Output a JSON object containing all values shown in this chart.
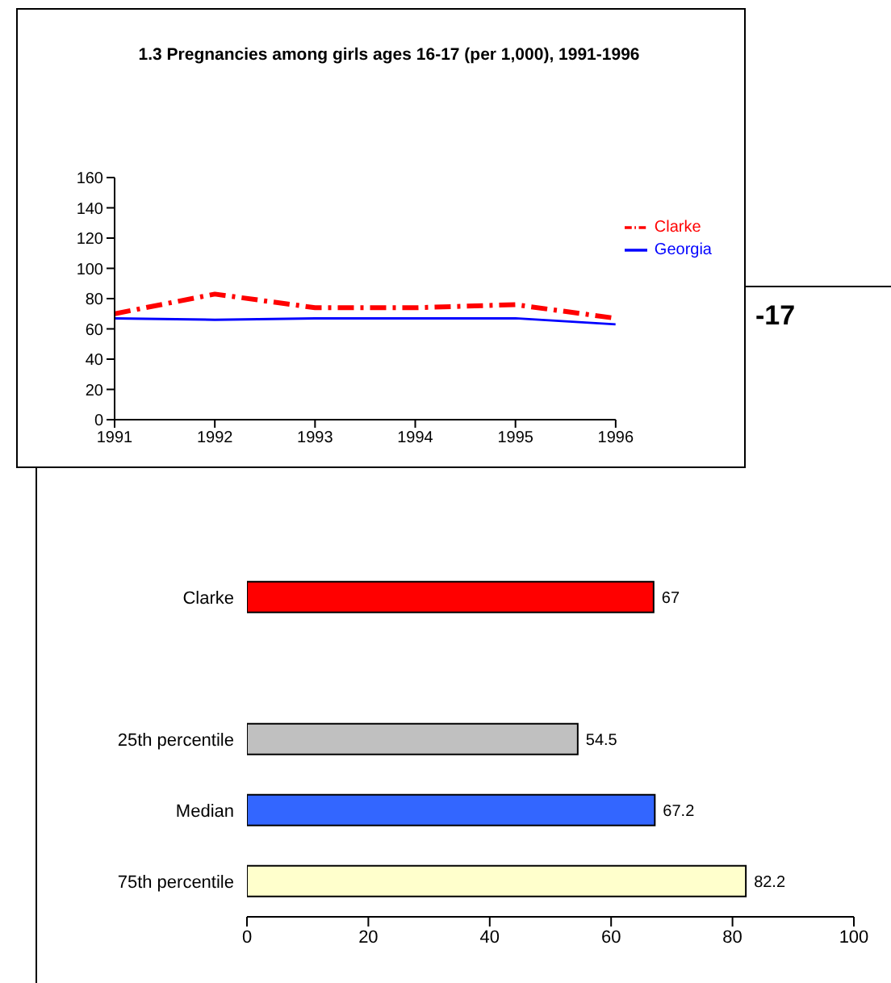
{
  "chart_data": [
    {
      "type": "line",
      "title": "1.3  Pregnancies among girls ages 16-17 (per 1,000), 1991-1996",
      "x": [
        1991,
        1992,
        1993,
        1994,
        1995,
        1996
      ],
      "xlim": [
        1991,
        1996
      ],
      "xticks": [
        1991,
        1992,
        1993,
        1994,
        1995,
        1996
      ],
      "ylim": [
        0,
        160
      ],
      "yticks": [
        0,
        20,
        40,
        60,
        80,
        100,
        120,
        140,
        160
      ],
      "grid": false,
      "legend": "right",
      "marker": "none",
      "series": [
        {
          "name": "Georgia",
          "color": "#0000ff",
          "line_style": "solid",
          "values": [
            67,
            66,
            67,
            67,
            67,
            63
          ]
        },
        {
          "name": "Clarke",
          "color": "#ff0000",
          "line_style": "dashed",
          "values": [
            70,
            83,
            74,
            74,
            76,
            67
          ]
        }
      ]
    },
    {
      "type": "bar",
      "orientation": "horizontal",
      "title": "-17",
      "categories": [
        "Clarke",
        null,
        "25th percentile",
        "Median",
        "75th percentile"
      ],
      "values": [
        67,
        null,
        54.5,
        67.2,
        82.2
      ],
      "colors": [
        "#ff0000",
        "#ffffff",
        "#c0c0c0",
        "#3366ff",
        "#ffffcc"
      ],
      "xlim": [
        0,
        100
      ],
      "xticks": [
        0,
        20,
        40,
        60,
        80,
        100
      ],
      "data_labels": true
    }
  ]
}
